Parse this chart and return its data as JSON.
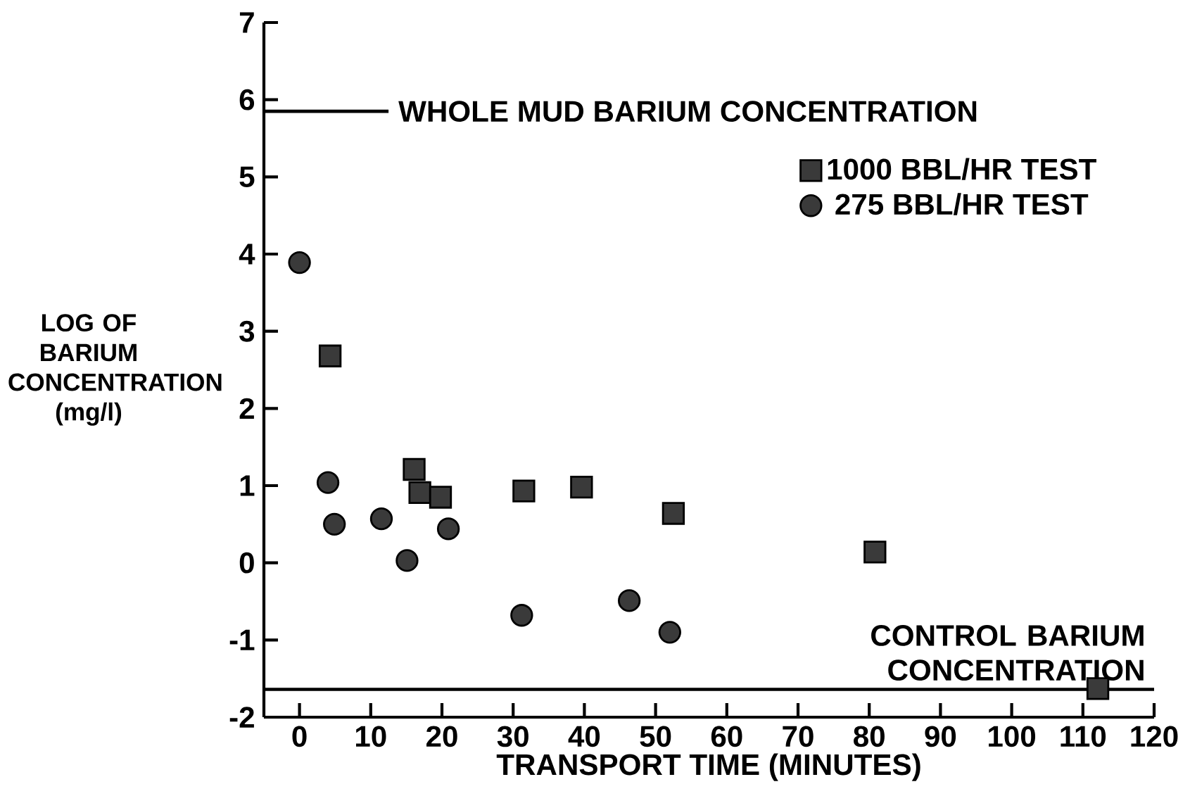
{
  "chart_data": {
    "type": "scatter",
    "xlabel": "TRANSPORT TIME (MINUTES)",
    "ylabel": "LOG OF BARIUM CONCENTRATION (mg/l)",
    "xlim": [
      -5,
      120
    ],
    "xticks": [
      0,
      10,
      20,
      30,
      40,
      50,
      60,
      70,
      80,
      90,
      100,
      110,
      120
    ],
    "ylim": [
      -2,
      7
    ],
    "yticks": [
      -2,
      -1,
      0,
      1,
      2,
      3,
      4,
      5,
      6,
      7
    ],
    "grid": false,
    "legend": "top right",
    "series": [
      {
        "name": "1000 BBL/HR TEST",
        "color": "#3a3a3a",
        "marker": "square",
        "x": [
          4.3,
          16.1,
          16.9,
          19.8,
          31.5,
          39.6,
          52.5,
          80.8
        ],
        "values": [
          2.68,
          1.21,
          0.91,
          0.85,
          0.93,
          0.98,
          0.64,
          0.14
        ]
      },
      {
        "name": "275 BBL/HR TEST",
        "color": "#3a3a3a",
        "marker": "circle",
        "x": [
          0,
          4.0,
          4.9,
          11.5,
          15.1,
          20.9,
          31.2,
          46.3,
          52.0
        ],
        "values": [
          3.89,
          1.04,
          0.5,
          0.57,
          0.03,
          0.44,
          -0.68,
          -0.49,
          -0.9
        ]
      },
      {
        "color": "#3a3a3a",
        "marker": "square",
        "x": [
          112.1
        ],
        "values": [
          -1.63
        ]
      }
    ],
    "ref_lines": [
      {
        "axis": "y",
        "value": 5.85,
        "label": "WHOLE MUD BARIUM CONCENTRATION"
      },
      {
        "axis": "y",
        "value": -1.64,
        "label": "CONTROL BARIUM CONCENTRATION"
      }
    ]
  }
}
